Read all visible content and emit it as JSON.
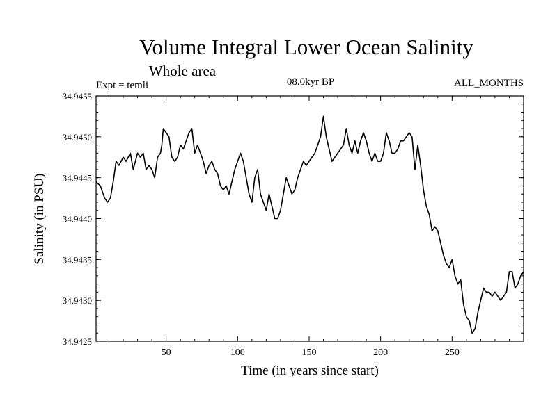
{
  "chart_data": {
    "type": "line",
    "title": "Volume Integral Lower Ocean Salinity",
    "subtitle": "Whole area",
    "left_label": "Expt = temli",
    "center_label": "08.0kyr BP",
    "right_label": "ALL_MONTHS",
    "xlabel": "Time (in years since start)",
    "ylabel": "Salinity (in PSU)",
    "xlim": [
      1,
      300
    ],
    "ylim": [
      34.9425,
      34.9455
    ],
    "xticks": [
      50,
      100,
      150,
      200,
      250
    ],
    "xtick_labels": [
      "50",
      "100",
      "150",
      "200",
      "250"
    ],
    "yticks": [
      34.9425,
      34.943,
      34.9435,
      34.944,
      34.9445,
      34.945,
      34.9455
    ],
    "ytick_labels": [
      "34.9425",
      "34.9430",
      "34.9435",
      "34.9440",
      "34.9445",
      "34.9450",
      "34.9455"
    ],
    "grid": false,
    "line_color": "#000000",
    "series": [
      {
        "name": "salinity",
        "x": [
          1,
          4,
          7,
          9,
          11,
          13,
          15,
          17,
          20,
          22,
          25,
          27,
          30,
          32,
          34,
          36,
          38,
          40,
          42,
          44,
          46,
          47,
          48,
          50,
          52,
          54,
          56,
          58,
          60,
          62,
          64,
          66,
          68,
          70,
          72,
          74,
          76,
          78,
          80,
          82,
          84,
          86,
          88,
          90,
          92,
          94,
          96,
          98,
          100,
          102,
          104,
          106,
          108,
          110,
          112,
          114,
          116,
          118,
          120,
          122,
          124,
          126,
          128,
          130,
          132,
          134,
          136,
          138,
          140,
          142,
          144,
          146,
          148,
          150,
          152,
          154,
          156,
          158,
          160,
          162,
          164,
          166,
          168,
          170,
          172,
          174,
          176,
          178,
          180,
          182,
          184,
          186,
          188,
          190,
          192,
          194,
          196,
          198,
          200,
          202,
          204,
          206,
          208,
          210,
          212,
          214,
          216,
          218,
          220,
          222,
          224,
          226,
          228,
          230,
          232,
          234,
          236,
          238,
          240,
          242,
          244,
          246,
          248,
          250,
          252,
          254,
          256,
          258,
          260,
          262,
          264,
          266,
          268,
          270,
          272,
          274,
          276,
          278,
          280,
          282,
          284,
          286,
          288,
          290,
          292,
          294,
          296,
          298,
          300
        ],
        "values": [
          34.94445,
          34.9444,
          34.94425,
          34.9442,
          34.94425,
          34.94445,
          34.9447,
          34.94465,
          34.94475,
          34.9447,
          34.9448,
          34.9446,
          34.9448,
          34.94475,
          34.9448,
          34.9446,
          34.94465,
          34.9446,
          34.9445,
          34.94475,
          34.9448,
          34.9449,
          34.9451,
          34.94505,
          34.945,
          34.94475,
          34.9447,
          34.94475,
          34.9449,
          34.94485,
          34.94495,
          34.94505,
          34.9451,
          34.9448,
          34.9449,
          34.9448,
          34.9447,
          34.94455,
          34.94465,
          34.9447,
          34.9446,
          34.94455,
          34.9444,
          34.94435,
          34.9444,
          34.9443,
          34.94445,
          34.9446,
          34.9447,
          34.9448,
          34.9447,
          34.9445,
          34.9443,
          34.9442,
          34.9445,
          34.9446,
          34.9443,
          34.9442,
          34.9441,
          34.9443,
          34.94415,
          34.944,
          34.944,
          34.9441,
          34.9443,
          34.9445,
          34.9444,
          34.9443,
          34.94435,
          34.9445,
          34.9446,
          34.9447,
          34.94465,
          34.9447,
          34.94475,
          34.9448,
          34.9449,
          34.945,
          34.94525,
          34.945,
          34.94485,
          34.9447,
          34.94475,
          34.9448,
          34.94485,
          34.9449,
          34.9451,
          34.9449,
          34.9448,
          34.94495,
          34.9448,
          34.94495,
          34.94505,
          34.94495,
          34.9448,
          34.9447,
          34.9448,
          34.9447,
          34.9447,
          34.9448,
          34.94505,
          34.94495,
          34.9448,
          34.9448,
          34.94485,
          34.94495,
          34.94495,
          34.945,
          34.94505,
          34.945,
          34.9446,
          34.9449,
          34.94465,
          34.94435,
          34.94415,
          34.94405,
          34.94385,
          34.9439,
          34.94385,
          34.9437,
          34.94355,
          34.94345,
          34.9434,
          34.9435,
          34.9433,
          34.9432,
          34.94325,
          34.94295,
          34.9428,
          34.94275,
          34.9426,
          34.94265,
          34.94285,
          34.943,
          34.94315,
          34.9431,
          34.9431,
          34.94305,
          34.9431,
          34.94305,
          34.943,
          34.94305,
          34.9431,
          34.94335,
          34.94335,
          34.94315,
          34.9432,
          34.9433,
          34.94335
        ]
      }
    ]
  }
}
